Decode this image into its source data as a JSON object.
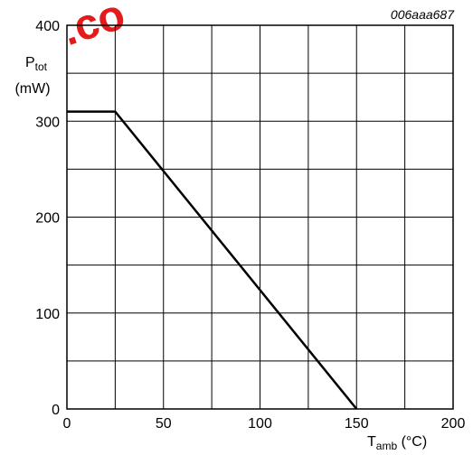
{
  "chart_data": {
    "type": "line",
    "figure_code": "006aaa687",
    "watermark": ".co",
    "xlim": [
      0,
      200
    ],
    "ylim": [
      0,
      400
    ],
    "x_ticks": [
      0,
      50,
      100,
      150,
      200
    ],
    "y_ticks": [
      0,
      100,
      200,
      300,
      400
    ],
    "x_minor_step": 25,
    "y_minor_step": 50,
    "grid": true,
    "series": [
      {
        "x": [
          0,
          25,
          150
        ],
        "y": [
          310,
          310,
          0
        ]
      }
    ],
    "ylabel": {
      "symbol": "P",
      "subscript": "tot",
      "unit": "(mW)"
    },
    "xlabel": {
      "symbol": "T",
      "subscript": "amb",
      "unit": " (°C)"
    }
  }
}
